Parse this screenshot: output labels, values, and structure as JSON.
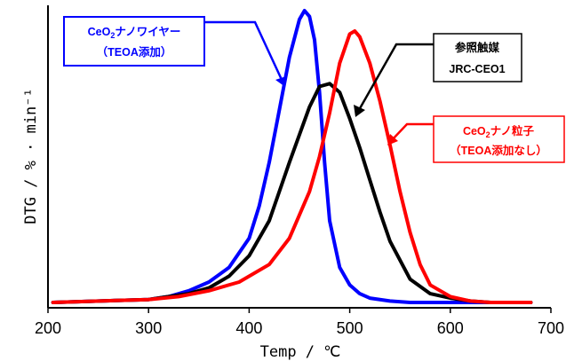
{
  "chart_data": {
    "type": "line",
    "xlabel": "Temp / ℃",
    "ylabel": "DTG / % · min⁻¹",
    "xlim": [
      200,
      700
    ],
    "xticks": [
      200,
      300,
      400,
      500,
      600,
      700
    ],
    "y_tick_labels": "none",
    "grid": false,
    "legend": "none",
    "series": [
      {
        "name": "CeO2ナノワイヤー (TEOA添加)",
        "color": "#0000ff",
        "x": [
          205,
          300,
          320,
          340,
          360,
          380,
          400,
          410,
          420,
          430,
          440,
          450,
          455,
          460,
          465,
          470,
          475,
          480,
          490,
          500,
          510,
          520,
          540,
          560,
          580,
          600,
          620,
          640,
          660,
          680
        ],
        "y": [
          0.0,
          0.01,
          0.02,
          0.04,
          0.07,
          0.12,
          0.22,
          0.33,
          0.48,
          0.66,
          0.84,
          0.97,
          1.0,
          0.98,
          0.9,
          0.72,
          0.48,
          0.28,
          0.12,
          0.06,
          0.03,
          0.015,
          0.005,
          0.0,
          0.0,
          0.0,
          0.0,
          0.0,
          0.0,
          0.0
        ]
      },
      {
        "name": "参照触媒 JRC-CEO1",
        "color": "#000000",
        "x": [
          205,
          300,
          320,
          340,
          360,
          380,
          400,
          420,
          440,
          460,
          470,
          480,
          490,
          500,
          510,
          520,
          530,
          540,
          560,
          580,
          600,
          620,
          640,
          660,
          680
        ],
        "y": [
          0.0,
          0.01,
          0.02,
          0.03,
          0.05,
          0.09,
          0.16,
          0.28,
          0.48,
          0.67,
          0.74,
          0.75,
          0.72,
          0.63,
          0.53,
          0.42,
          0.31,
          0.21,
          0.08,
          0.03,
          0.015,
          0.005,
          0.0,
          0.0,
          0.0
        ]
      },
      {
        "name": "CeO2ナノ粒子 (TEOA添加なし)",
        "color": "#ff0000",
        "x": [
          205,
          300,
          330,
          360,
          390,
          420,
          440,
          460,
          470,
          480,
          490,
          500,
          505,
          510,
          520,
          530,
          540,
          550,
          560,
          570,
          580,
          600,
          620,
          640,
          660,
          680
        ],
        "y": [
          0.0,
          0.01,
          0.02,
          0.04,
          0.07,
          0.13,
          0.22,
          0.38,
          0.5,
          0.65,
          0.82,
          0.92,
          0.93,
          0.91,
          0.82,
          0.69,
          0.54,
          0.38,
          0.24,
          0.13,
          0.06,
          0.02,
          0.005,
          0.0,
          0.0,
          0.0
        ]
      }
    ],
    "annotations": [
      {
        "lines": [
          "CeO",
          "2",
          "ナノワイヤー"
        ],
        "line2": "（TEOA添加）",
        "color": "#0000ff"
      },
      {
        "line1": "参照触媒",
        "line2": "JRC-CEO1",
        "color": "#000000"
      },
      {
        "lines": [
          "CeO",
          "2",
          "ナノ粒子"
        ],
        "line2": "（TEOA添加なし）",
        "color": "#ff0000"
      }
    ]
  }
}
